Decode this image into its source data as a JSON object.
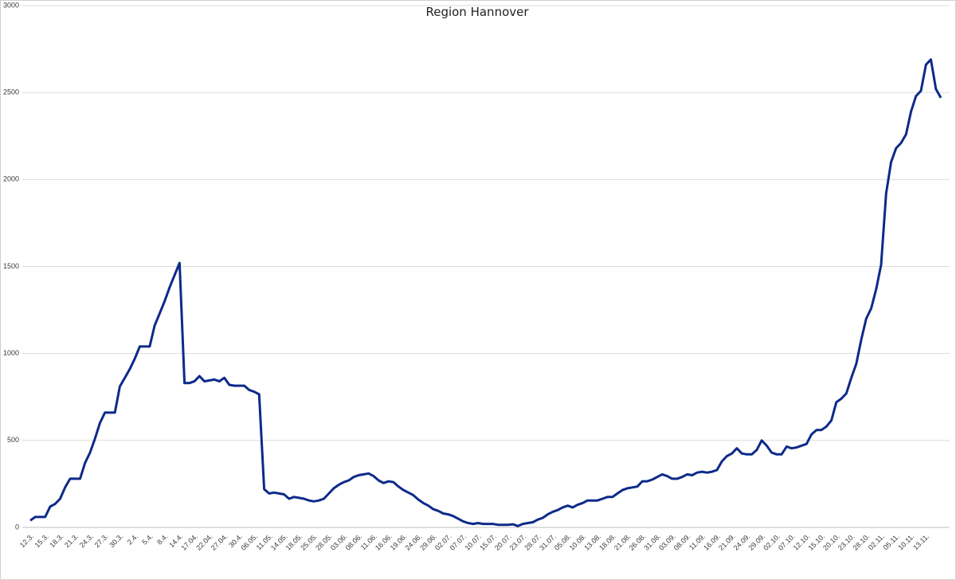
{
  "chart_data": {
    "type": "line",
    "title": "Region Hannover",
    "categories": [
      "12.3.",
      null,
      null,
      "15.3.",
      null,
      null,
      "18.3.",
      null,
      null,
      "21.3.",
      null,
      null,
      "24.3.",
      null,
      null,
      "27.3.",
      null,
      null,
      "30.3.",
      null,
      null,
      "2.4.",
      null,
      null,
      "5.4.",
      null,
      null,
      "8.4.",
      null,
      null,
      "14.4.",
      null,
      null,
      "17.04.",
      null,
      null,
      "22.04.",
      null,
      null,
      "27.04.",
      null,
      null,
      "30.4.",
      null,
      null,
      "06.05.",
      null,
      null,
      "11.05.",
      null,
      null,
      "14.05.",
      null,
      null,
      "18.05.",
      null,
      null,
      "25.05.",
      null,
      null,
      "28.05.",
      null,
      null,
      "03.06.",
      null,
      null,
      "08.06.",
      null,
      null,
      "11.06.",
      null,
      null,
      "16.06.",
      null,
      null,
      "19.06.",
      null,
      null,
      "24.06.",
      null,
      null,
      "29.06.",
      null,
      null,
      "02.07.",
      null,
      null,
      "07.07.",
      null,
      null,
      "10.07.",
      null,
      null,
      "15.07.",
      null,
      null,
      "20.07.",
      null,
      null,
      "23.07.",
      null,
      null,
      "28.07.",
      null,
      null,
      "31.07.",
      null,
      null,
      "05.08.",
      null,
      null,
      "10.08.",
      null,
      null,
      "13.08.",
      null,
      null,
      "18.08.",
      null,
      null,
      "21.08.",
      null,
      null,
      "26.08.",
      null,
      null,
      "31.08.",
      null,
      null,
      "03.09.",
      null,
      null,
      "08.09.",
      null,
      null,
      "11.09.",
      null,
      null,
      "16.09.",
      null,
      null,
      "21.09.",
      null,
      null,
      "24.09.",
      null,
      null,
      "29.09.",
      null,
      null,
      "02.10.",
      null,
      null,
      "07.10.",
      null,
      null,
      "12.10.",
      null,
      null,
      "15.10.",
      null,
      null,
      "20.10.",
      null,
      null,
      "23.10.",
      null,
      null,
      "28.10.",
      null,
      null,
      "02.11.",
      null,
      null,
      "05.11.",
      null,
      null,
      "10.11.",
      null,
      null,
      "13.11.",
      null,
      null,
      null
    ],
    "series": [
      {
        "color": "#0d2a8a",
        "values": [
          40,
          60,
          60,
          60,
          120,
          135,
          165,
          230,
          280,
          280,
          280,
          370,
          430,
          510,
          600,
          660,
          660,
          660,
          810,
          860,
          910,
          970,
          1040,
          1040,
          1040,
          1160,
          1230,
          1300,
          1380,
          1450,
          1520,
          830,
          830,
          840,
          870,
          840,
          845,
          850,
          840,
          860,
          820,
          815,
          815,
          815,
          790,
          780,
          765,
          220,
          195,
          200,
          195,
          190,
          165,
          175,
          170,
          165,
          155,
          150,
          155,
          165,
          195,
          225,
          245,
          260,
          270,
          290,
          300,
          305,
          310,
          295,
          270,
          255,
          265,
          260,
          235,
          215,
          200,
          185,
          160,
          140,
          125,
          105,
          95,
          80,
          75,
          65,
          50,
          35,
          25,
          20,
          25,
          20,
          20,
          20,
          15,
          15,
          15,
          18,
          8,
          20,
          25,
          30,
          45,
          55,
          75,
          90,
          100,
          115,
          125,
          115,
          130,
          140,
          155,
          155,
          155,
          165,
          175,
          175,
          195,
          215,
          225,
          230,
          235,
          265,
          265,
          275,
          290,
          305,
          295,
          280,
          280,
          290,
          305,
          300,
          315,
          320,
          315,
          320,
          330,
          380,
          410,
          425,
          455,
          425,
          420,
          420,
          445,
          500,
          470,
          430,
          420,
          420,
          465,
          455,
          460,
          470,
          480,
          535,
          560,
          560,
          580,
          615,
          720,
          740,
          770,
          860,
          940,
          1080,
          1200,
          1260,
          1370,
          1510,
          1920,
          2100,
          2180,
          2210,
          2260,
          2390,
          2480,
          2510,
          2660,
          2690,
          2520,
          2470
        ]
      }
    ],
    "ylim": [
      0,
      3000
    ],
    "yticks": [
      0,
      500,
      1000,
      1500,
      2000,
      2500,
      3000
    ],
    "grid": true
  }
}
